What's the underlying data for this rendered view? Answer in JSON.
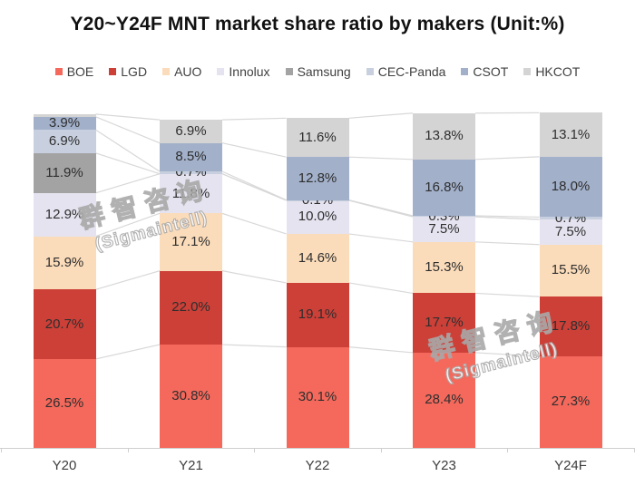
{
  "chart_data": {
    "type": "bar",
    "stacked": true,
    "title": "Y20~Y24F MNT market share ratio by makers (Unit:%)",
    "unit": "%",
    "categories": [
      "Y20",
      "Y21",
      "Y22",
      "Y23",
      "Y24F"
    ],
    "ylim": [
      0,
      100
    ],
    "grid": false,
    "legend_position": "top",
    "series": [
      {
        "name": "BOE",
        "color": "#f4695c",
        "values": [
          26.5,
          30.8,
          30.1,
          28.4,
          27.3
        ],
        "labels": [
          "26.5%",
          "30.8%",
          "30.1%",
          "28.4%",
          "27.3%"
        ]
      },
      {
        "name": "LGD",
        "color": "#cc4038",
        "values": [
          20.7,
          22.0,
          19.1,
          17.7,
          17.8
        ],
        "labels": [
          "20.7%",
          "22.0%",
          "19.1%",
          "17.7%",
          "17.8%"
        ]
      },
      {
        "name": "AUO",
        "color": "#fbdcba",
        "values": [
          15.9,
          17.1,
          14.6,
          15.3,
          15.5
        ],
        "labels": [
          "15.9%",
          "17.1%",
          "14.6%",
          "15.3%",
          "15.5%"
        ]
      },
      {
        "name": "Innolux",
        "color": "#e6e3f0",
        "values": [
          12.9,
          11.8,
          10.0,
          7.5,
          7.5
        ],
        "labels": [
          "12.9%",
          "11.8%",
          "10.0%",
          "7.5%",
          "7.5%"
        ]
      },
      {
        "name": "Samsung",
        "color": "#a3a3a3",
        "values": [
          11.9,
          0,
          0,
          0,
          0
        ],
        "labels": [
          "11.9%",
          "",
          "",
          "",
          ""
        ]
      },
      {
        "name": "CEC-Panda",
        "color": "#c8d0df",
        "values": [
          6.9,
          0.7,
          0.1,
          0.3,
          0.7
        ],
        "labels": [
          "6.9%",
          "0.7%",
          "0.1%",
          "0.3%",
          "0.7%"
        ]
      },
      {
        "name": "CSOT",
        "color": "#a2b0ca",
        "values": [
          3.9,
          8.5,
          12.8,
          16.8,
          18.0
        ],
        "labels": [
          "3.9%",
          "8.5%",
          "12.8%",
          "16.8%",
          "18.0%"
        ]
      },
      {
        "name": "HKCOT",
        "color": "#d4d4d4",
        "values": [
          0.8,
          6.9,
          11.6,
          13.8,
          13.1
        ],
        "labels": [
          "",
          "6.9%",
          "11.6%",
          "13.8%",
          "13.1%"
        ]
      }
    ],
    "watermark": {
      "line1": "群智咨询",
      "line2": "(Sigmaintell)"
    }
  }
}
